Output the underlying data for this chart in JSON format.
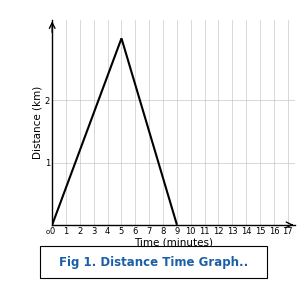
{
  "line_x": [
    0,
    5,
    9
  ],
  "line_y": [
    0,
    3,
    0
  ],
  "xlim": [
    0,
    17.5
  ],
  "ylim": [
    0,
    3.3
  ],
  "xticks": [
    0,
    1,
    2,
    3,
    4,
    5,
    6,
    7,
    8,
    9,
    10,
    11,
    12,
    13,
    14,
    15,
    16,
    17
  ],
  "yticks": [
    1,
    2
  ],
  "xlabel": "Time (minutes)",
  "ylabel": "Distance (km)",
  "line_color": "#000000",
  "line_width": 1.5,
  "grid_color": "#bbbbbb",
  "background_color": "#ffffff",
  "caption": "Fig 1. Distance Time Graph..",
  "caption_color": "#1a5fa8",
  "caption_fontsize": 8.5,
  "tick_fontsize": 6,
  "axis_label_fontsize": 7.5,
  "fig_width": 3.07,
  "fig_height": 2.81
}
